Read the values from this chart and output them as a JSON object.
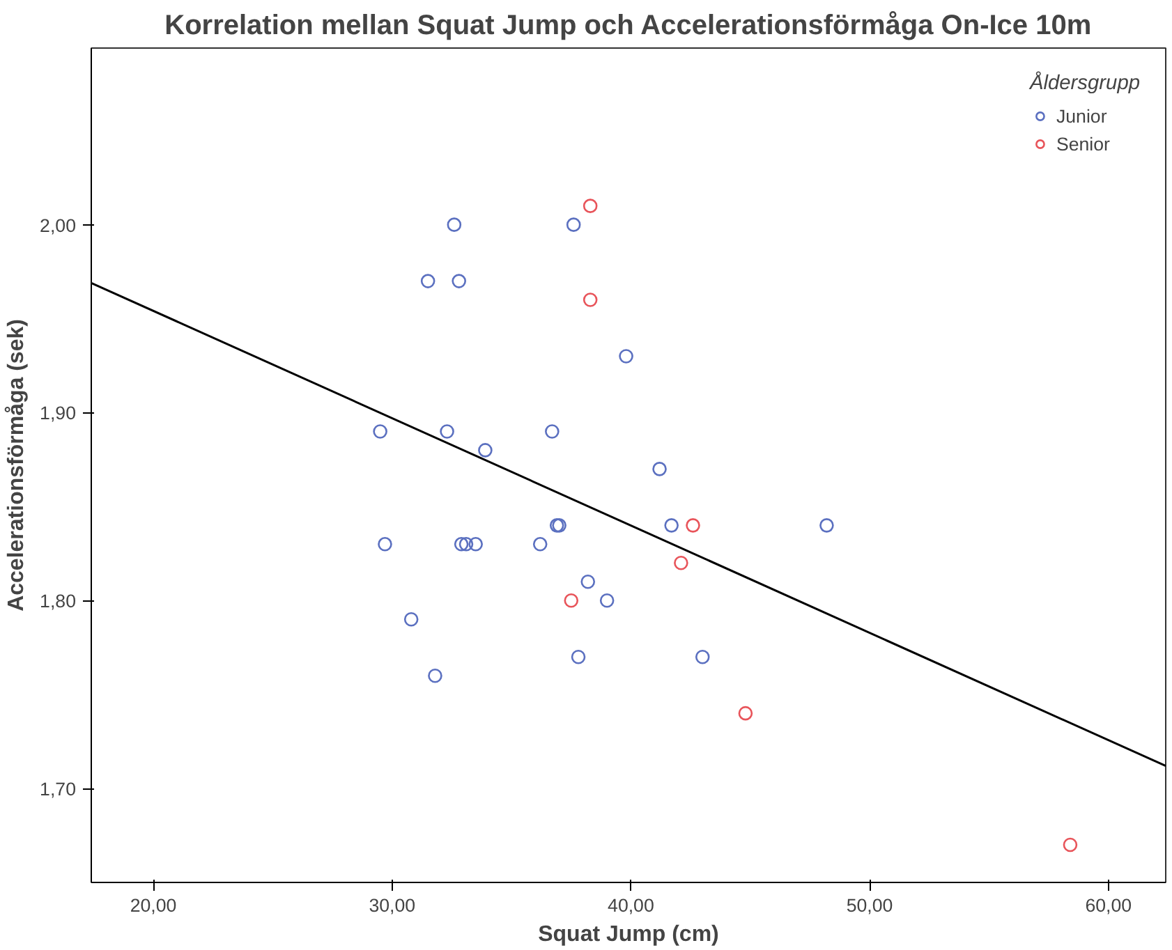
{
  "chart_data": {
    "type": "scatter",
    "title": "Korrelation mellan Squat Jump och Accelerationsförmåga On-Ice 10m",
    "xlabel": "Squat Jump (cm)",
    "ylabel": "Accelerationsförmåga (sek)",
    "legend_title": "Åldersgrupp",
    "legend": "top right",
    "grid": false,
    "marker": "circle",
    "xlim": [
      17.4,
      62.4
    ],
    "ylim": [
      1.65,
      2.094
    ],
    "xticks": [
      {
        "value": 20,
        "label": "20,00"
      },
      {
        "value": 30,
        "label": "30,00"
      },
      {
        "value": 40,
        "label": "40,00"
      },
      {
        "value": 50,
        "label": "50,00"
      },
      {
        "value": 60,
        "label": "60,00"
      }
    ],
    "yticks": [
      {
        "value": 1.7,
        "label": "1,70"
      },
      {
        "value": 1.8,
        "label": "1,80"
      },
      {
        "value": 1.9,
        "label": "1,90"
      },
      {
        "value": 2.0,
        "label": "2,00"
      }
    ],
    "series": [
      {
        "name": "Junior",
        "color": "#5b70c0",
        "x": [
          29.5,
          29.7,
          30.8,
          31.8,
          31.5,
          32.6,
          32.8,
          32.3,
          32.9,
          33.1,
          33.5,
          33.9,
          36.2,
          36.7,
          36.9,
          37.0,
          37.6,
          37.8,
          38.2,
          39.0,
          39.8,
          41.2,
          41.7,
          43.0,
          48.2
        ],
        "values": [
          1.89,
          1.83,
          1.79,
          1.76,
          1.97,
          2.0,
          1.97,
          1.89,
          1.83,
          1.83,
          1.83,
          1.88,
          1.83,
          1.89,
          1.84,
          1.84,
          2.0,
          1.77,
          1.81,
          1.8,
          1.93,
          1.87,
          1.84,
          1.77,
          1.84
        ]
      },
      {
        "name": "Senior",
        "color": "#e8545a",
        "x": [
          38.3,
          38.3,
          37.5,
          42.6,
          42.1,
          44.8,
          58.4
        ],
        "values": [
          2.01,
          1.96,
          1.8,
          1.84,
          1.82,
          1.74,
          1.67
        ]
      },
      {
        "type": "line",
        "color": "#000000",
        "marker": "none",
        "x": [
          17.4,
          62.4
        ],
        "values": [
          1.969,
          1.712
        ]
      }
    ]
  }
}
